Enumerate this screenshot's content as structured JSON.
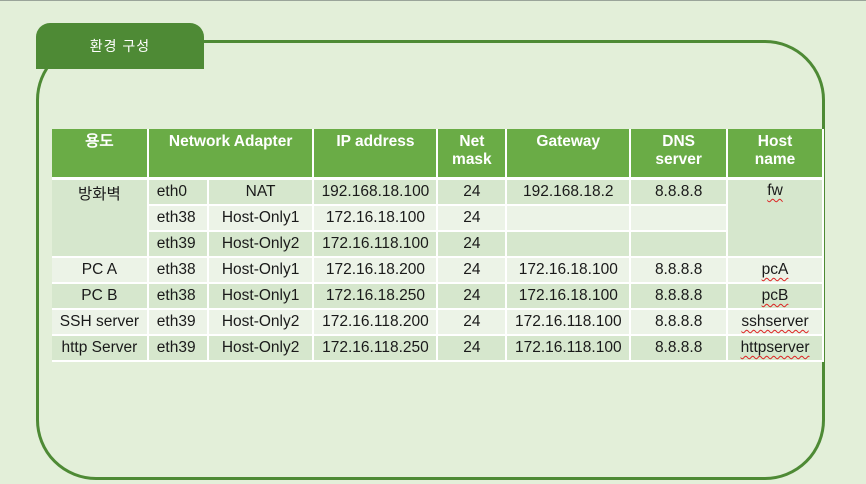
{
  "slide": {
    "tab_label": "환경 구성"
  },
  "table": {
    "headers": [
      "용도",
      "Network Adapter",
      "IP address",
      "Net mask",
      "Gateway",
      "DNS server",
      "Host name"
    ],
    "header_lines": {
      "netmask": [
        "Net",
        "mask"
      ],
      "dns": [
        "DNS",
        "server"
      ],
      "host": [
        "Host",
        "name"
      ]
    },
    "firewall": {
      "purpose": "방화벽",
      "host": "fw",
      "rows": [
        {
          "iface": "eth0",
          "adapter": "NAT",
          "ip": "192.168.18.100",
          "mask": "24",
          "gateway": "192.168.18.2",
          "dns": "8.8.8.8"
        },
        {
          "iface": "eth38",
          "adapter": "Host-Only1",
          "ip": "172.16.18.100",
          "mask": "24",
          "gateway": "",
          "dns": ""
        },
        {
          "iface": "eth39",
          "adapter": "Host-Only2",
          "ip": "172.16.118.100",
          "mask": "24",
          "gateway": "",
          "dns": ""
        }
      ]
    },
    "hosts": [
      {
        "purpose": "PC A",
        "iface": "eth38",
        "adapter": "Host-Only1",
        "ip": "172.16.18.200",
        "mask": "24",
        "gateway": "172.16.18.100",
        "dns": "8.8.8.8",
        "host": "pcA"
      },
      {
        "purpose": "PC B",
        "iface": "eth38",
        "adapter": "Host-Only1",
        "ip": "172.16.18.250",
        "mask": "24",
        "gateway": "172.16.18.100",
        "dns": "8.8.8.8",
        "host": "pcB"
      },
      {
        "purpose": "SSH server",
        "iface": "eth39",
        "adapter": "Host-Only2",
        "ip": "172.16.118.200",
        "mask": "24",
        "gateway": "172.16.118.100",
        "dns": "8.8.8.8",
        "host": "sshserver"
      },
      {
        "purpose": "http Server",
        "iface": "eth39",
        "adapter": "Host-Only2",
        "ip": "172.16.118.250",
        "mask": "24",
        "gateway": "172.16.118.100",
        "dns": "8.8.8.8",
        "host": "httpserver"
      }
    ]
  },
  "colors": {
    "header": "#6aac46",
    "frame": "#4e8a35",
    "band1": "#d6e7cd",
    "band2": "#ecf3e7",
    "background": "#e3efd9"
  }
}
